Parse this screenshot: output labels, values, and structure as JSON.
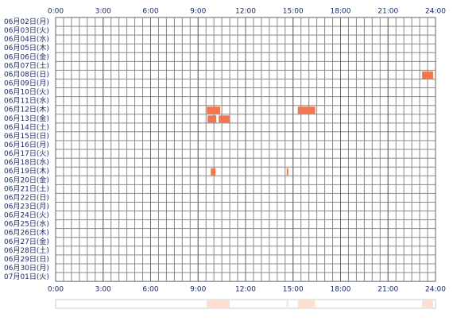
{
  "chart_data": {
    "type": "timeline",
    "categories": [
      "06月02日(月)",
      "06月03日(火)",
      "06月04日(水)",
      "06月05日(木)",
      "06月06日(金)",
      "06月07日(土)",
      "06月08日(日)",
      "06月09日(月)",
      "06月10日(火)",
      "06月11日(水)",
      "06月12日(木)",
      "06月13日(金)",
      "06月14日(土)",
      "06月15日(日)",
      "06月16日(月)",
      "06月17日(火)",
      "06月18日(水)",
      "06月19日(木)",
      "06月20日(金)",
      "06月21日(土)",
      "06月22日(日)",
      "06月23日(月)",
      "06月24日(火)",
      "06月25日(水)",
      "06月26日(木)",
      "06月27日(金)",
      "06月28日(土)",
      "06月29日(日)",
      "06月30日(月)",
      "07月01日(火)"
    ],
    "values": [
      [],
      [],
      [],
      [],
      [],
      [],
      [
        [
          23.15,
          23.85
        ]
      ],
      [],
      [],
      [],
      [
        [
          9.55,
          10.4
        ],
        [
          15.3,
          16.4
        ]
      ],
      [
        [
          9.6,
          10.15
        ],
        [
          10.3,
          11.0
        ]
      ],
      [],
      [],
      [],
      [],
      [],
      [
        [
          9.8,
          10.1
        ],
        [
          14.6,
          14.7
        ]
      ],
      [],
      [],
      [],
      [],
      [],
      [],
      [],
      [],
      [],
      [],
      [],
      []
    ],
    "color": "#f07850",
    "summary_color": "#fde0d2",
    "xlim": [
      0,
      24
    ],
    "xticks": [
      {
        "value": 0,
        "label": "0:00"
      },
      {
        "value": 3,
        "label": "3:00"
      },
      {
        "value": 6,
        "label": "6:00"
      },
      {
        "value": 9,
        "label": "9:00"
      },
      {
        "value": 12,
        "label": "12:00"
      },
      {
        "value": 15,
        "label": "15:00"
      },
      {
        "value": 18,
        "label": "18:00"
      },
      {
        "value": 21,
        "label": "21:00"
      },
      {
        "value": 24,
        "label": "24:00"
      }
    ],
    "grid": true
  }
}
